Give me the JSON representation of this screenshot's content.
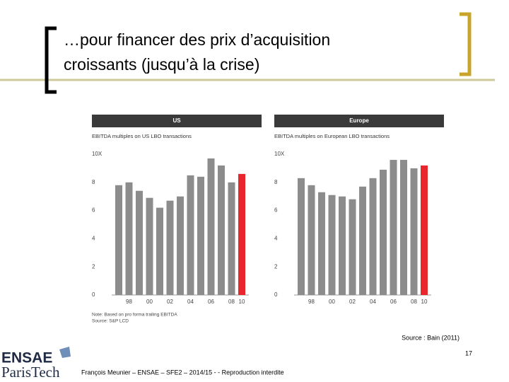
{
  "title_lines": [
    "…pour financer des prix d’acquisition",
    "croissants (jusqu’à la crise)"
  ],
  "chart_data": [
    {
      "type": "bar",
      "title": "US",
      "subtitle": "EBITDA multiples on US LBO transactions",
      "categories": [
        null,
        "98",
        null,
        "00",
        null,
        "02",
        null,
        "04",
        null,
        "06",
        null,
        "08",
        "10"
      ],
      "values": [
        7.8,
        8.0,
        7.4,
        6.9,
        6.2,
        6.7,
        7.0,
        8.5,
        8.4,
        9.7,
        9.2,
        8.0,
        8.6
      ],
      "colors": [
        "#8c8c8c",
        "#8c8c8c",
        "#8c8c8c",
        "#8c8c8c",
        "#8c8c8c",
        "#8c8c8c",
        "#8c8c8c",
        "#8c8c8c",
        "#8c8c8c",
        "#8c8c8c",
        "#8c8c8c",
        "#8c8c8c",
        "#e8262b"
      ],
      "ylim": [
        0,
        10
      ],
      "yticks": [
        0,
        2,
        4,
        6,
        8,
        {
          "value": 10,
          "label": "10X"
        }
      ],
      "notes": [
        "Note: Based on pro forma trailing EBITDA",
        "Source: S&P LCD"
      ]
    },
    {
      "type": "bar",
      "title": "Europe",
      "subtitle": "EBITDA multiples on European LBO transactions",
      "categories": [
        null,
        "98",
        null,
        "00",
        null,
        "02",
        null,
        "04",
        null,
        "06",
        null,
        "08",
        "10"
      ],
      "values": [
        8.3,
        7.8,
        7.3,
        7.1,
        7.0,
        6.8,
        7.7,
        8.3,
        8.9,
        9.6,
        9.6,
        9.0,
        9.2
      ],
      "colors": [
        "#8c8c8c",
        "#8c8c8c",
        "#8c8c8c",
        "#8c8c8c",
        "#8c8c8c",
        "#8c8c8c",
        "#8c8c8c",
        "#8c8c8c",
        "#8c8c8c",
        "#8c8c8c",
        "#8c8c8c",
        "#8c8c8c",
        "#e8262b"
      ],
      "ylim": [
        0,
        10
      ],
      "yticks": [
        0,
        2,
        4,
        6,
        8,
        {
          "value": 10,
          "label": "10X"
        }
      ]
    }
  ],
  "source": "Source : Bain (2011)",
  "page_number": "17",
  "footer": "François Meunier – ENSAE – SFE2 – 2014/15 - - Reproduction interdite",
  "logo": [
    "ENSAE",
    "ParisTech"
  ]
}
